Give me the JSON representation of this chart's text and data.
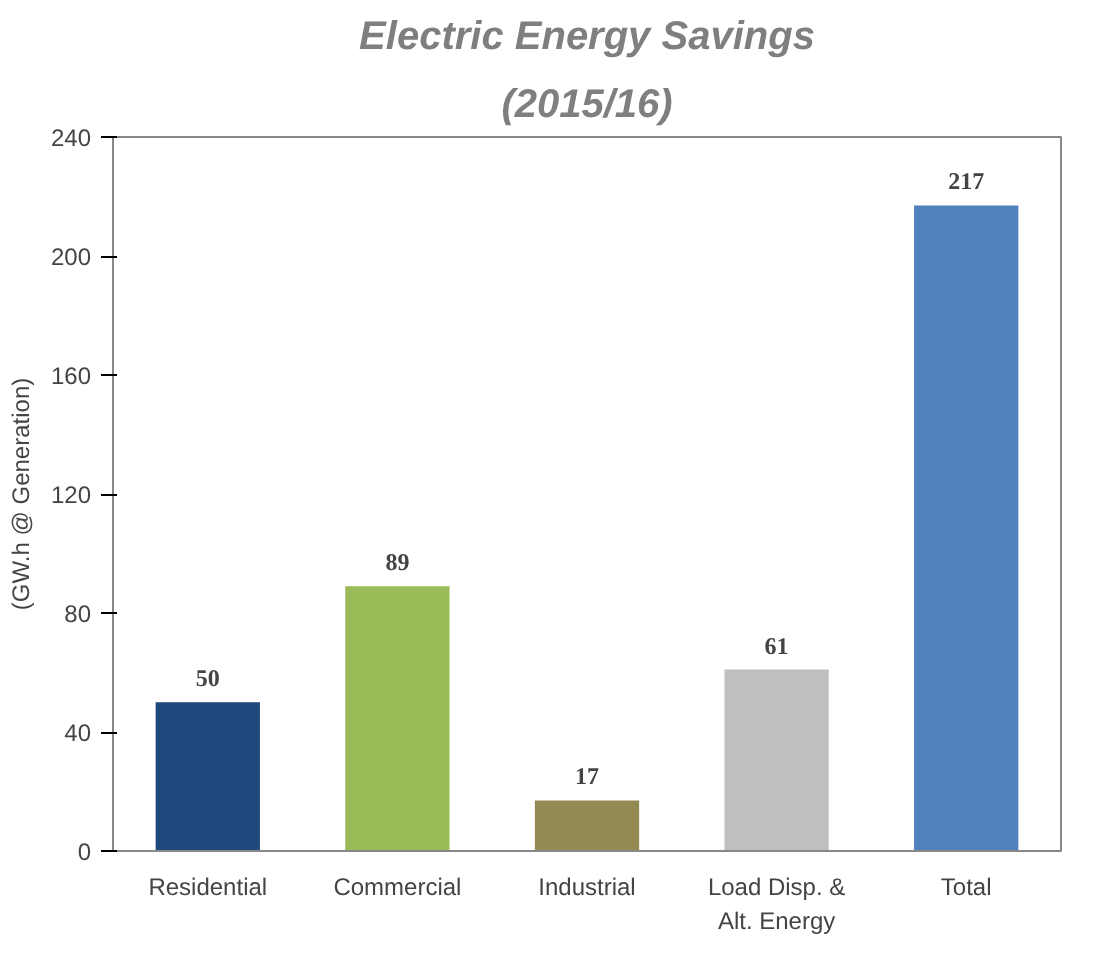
{
  "chart_data": {
    "type": "bar",
    "title": "Electric Energy Savings",
    "subtitle": "(2015/16)",
    "ylabel": "(GW.h @ Generation)",
    "categories": [
      "Residential",
      "Commercial",
      "Industrial",
      "Load Disp. &\nAlt. Energy",
      "Total"
    ],
    "values": [
      50,
      89,
      17,
      61,
      217
    ],
    "colors": [
      "#1f497d",
      "#9bbb59",
      "#948a54",
      "#bfbfbf",
      "#4f81bd"
    ],
    "ylim": [
      0,
      240
    ],
    "yticks": [
      0,
      40,
      80,
      120,
      160,
      200,
      240
    ],
    "grid": false,
    "data_labels": true
  }
}
